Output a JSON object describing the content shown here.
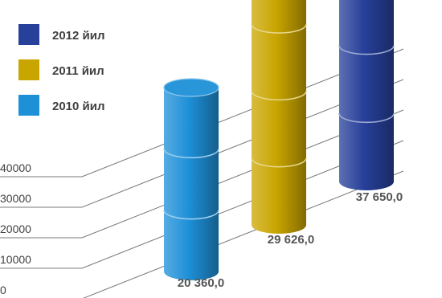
{
  "chart_data": {
    "type": "bar",
    "style": "3d-cylinders",
    "title": "",
    "xlabel": "",
    "ylabel": "",
    "ylim": [
      0,
      40000
    ],
    "y_ticks": [
      "0",
      "10000",
      "20000",
      "30000",
      "40000"
    ],
    "grid": true,
    "legend_position": "top-left",
    "series": [
      {
        "name": "2012 йил",
        "value": 37650,
        "value_label": "37 650,0",
        "color": "#27409a"
      },
      {
        "name": "2011 йил",
        "value": 29626,
        "value_label": "29 626,0",
        "color": "#c9a500"
      },
      {
        "name": "2010 йил",
        "value": 20360,
        "value_label": "20 360,0",
        "color": "#1e90d8"
      }
    ]
  }
}
